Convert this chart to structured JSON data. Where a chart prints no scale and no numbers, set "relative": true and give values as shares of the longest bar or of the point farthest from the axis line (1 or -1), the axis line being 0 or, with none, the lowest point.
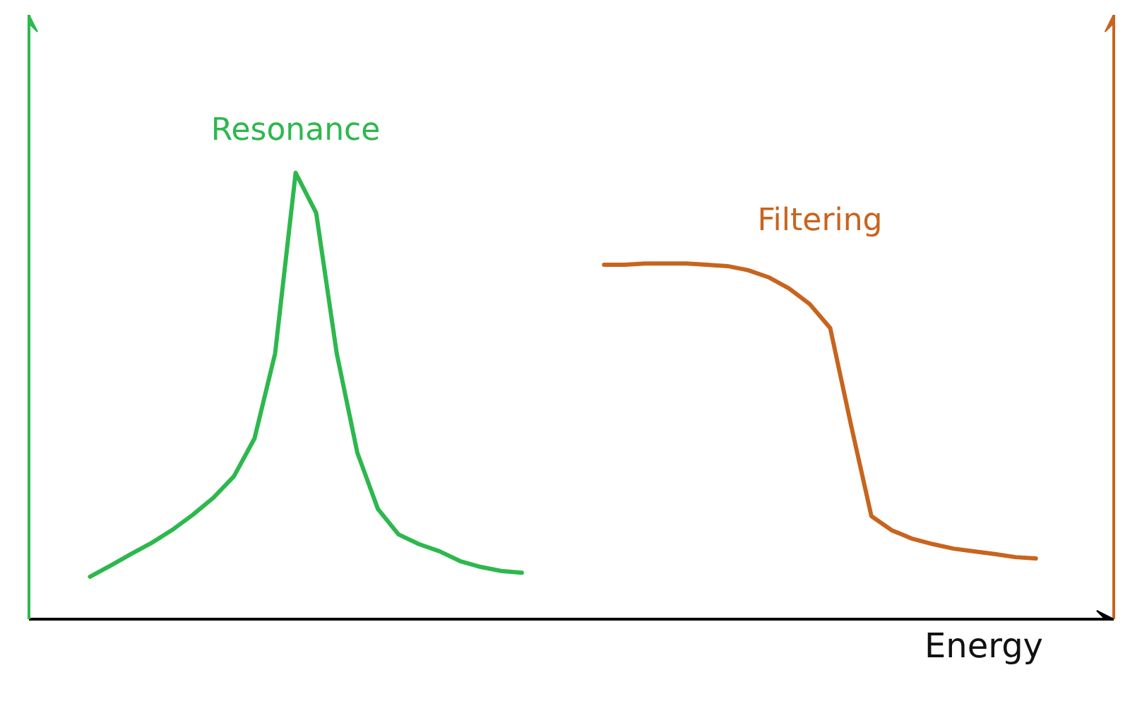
{
  "chart_data": {
    "type": "line",
    "relative": true,
    "xlabel": "Energy",
    "marker": "none",
    "line_style": "solid",
    "categories": [
      null,
      null,
      null,
      null,
      null,
      null,
      null,
      null,
      null,
      null,
      null,
      null,
      null,
      null,
      null,
      null,
      null,
      null,
      null,
      null,
      null,
      null,
      null,
      null,
      null,
      null,
      null,
      null,
      null,
      null,
      null,
      null,
      null,
      null,
      null,
      null,
      null,
      null,
      null,
      null,
      null,
      null,
      null,
      null,
      null,
      null,
      null
    ],
    "series": [
      {
        "name": "Resonance",
        "color": "#2db84d",
        "values": [
          0.095,
          0.12,
          0.146,
          0.171,
          0.2,
          0.234,
          0.272,
          0.32,
          0.405,
          0.595,
          1.0,
          0.91,
          0.595,
          0.373,
          0.247,
          0.19,
          0.168,
          0.152,
          0.13,
          0.117,
          0.108,
          0.104,
          null,
          null,
          null,
          null,
          null,
          null,
          null,
          null,
          null,
          null,
          null,
          null,
          null,
          null,
          null,
          null,
          null,
          null,
          null,
          null,
          null,
          null,
          null,
          null,
          null
        ]
      },
      {
        "name": "Filtering",
        "color": "#c8641e",
        "values": [
          null,
          null,
          null,
          null,
          null,
          null,
          null,
          null,
          null,
          null,
          null,
          null,
          null,
          null,
          null,
          null,
          null,
          null,
          null,
          null,
          null,
          null,
          null,
          null,
          null,
          0.794,
          0.794,
          0.797,
          0.797,
          0.797,
          0.794,
          0.791,
          0.782,
          0.766,
          0.741,
          0.706,
          0.652,
          0.437,
          0.231,
          0.199,
          0.18,
          0.168,
          0.158,
          0.152,
          0.146,
          0.139,
          0.136
        ]
      }
    ]
  }
}
